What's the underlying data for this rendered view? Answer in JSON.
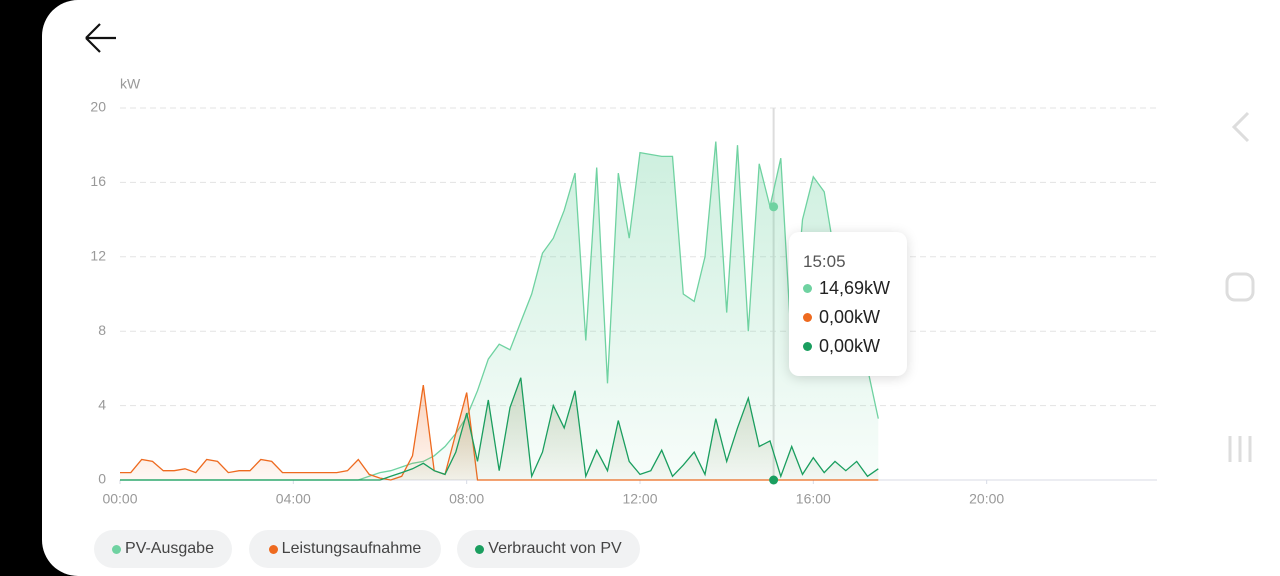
{
  "chart_data": {
    "type": "line",
    "y_label": "kW",
    "x": [
      0,
      0.25,
      0.5,
      0.75,
      1,
      1.25,
      1.5,
      1.75,
      2,
      2.25,
      2.5,
      2.75,
      3,
      3.25,
      3.5,
      3.75,
      4,
      4.25,
      4.5,
      4.75,
      5,
      5.25,
      5.5,
      5.75,
      6,
      6.25,
      6.5,
      6.75,
      7,
      7.25,
      7.5,
      7.75,
      8,
      8.25,
      8.5,
      8.75,
      9,
      9.25,
      9.5,
      9.75,
      10,
      10.25,
      10.5,
      10.75,
      11,
      11.25,
      11.5,
      11.75,
      12,
      12.25,
      12.5,
      12.75,
      13,
      13.25,
      13.5,
      13.75,
      14,
      14.25,
      14.5,
      14.75,
      15,
      15.25,
      15.5,
      15.75,
      16,
      16.25,
      16.5,
      16.75,
      17,
      17.25,
      17.5
    ],
    "series": [
      {
        "name": "PV-Ausgabe",
        "color": "#6fd2a1",
        "fill": true,
        "values": [
          0,
          0,
          0,
          0,
          0,
          0,
          0,
          0,
          0,
          0,
          0,
          0,
          0,
          0,
          0,
          0,
          0,
          0,
          0,
          0,
          0,
          0,
          0,
          0.2,
          0.4,
          0.5,
          0.7,
          0.9,
          1.0,
          1.3,
          1.8,
          2.5,
          3.4,
          4.8,
          6.5,
          7.3,
          7.0,
          8.5,
          10,
          12.2,
          13,
          14.5,
          16.5,
          7.5,
          16.8,
          5.2,
          16.5,
          13,
          17.6,
          17.5,
          17.4,
          17.4,
          10,
          9.6,
          12,
          18.2,
          9,
          18,
          8,
          17,
          14.7,
          17.3,
          7,
          14,
          16.3,
          15.5,
          12,
          10.5,
          6.5,
          6,
          3.3
        ]
      },
      {
        "name": "Leistungsaufnahme",
        "color": "#ee6a1f",
        "fill": true,
        "values": [
          0.4,
          0.4,
          1.1,
          1.0,
          0.5,
          0.5,
          0.6,
          0.4,
          1.1,
          1.0,
          0.4,
          0.5,
          0.5,
          1.1,
          1.0,
          0.4,
          0.4,
          0.4,
          0.4,
          0.4,
          0.4,
          0.5,
          1.1,
          0.3,
          0.1,
          0,
          0.2,
          1.3,
          5.1,
          0.5,
          0.3,
          2.5,
          4.7,
          0,
          0,
          0,
          0,
          0,
          0,
          0,
          0,
          0,
          0,
          0,
          0,
          0,
          0,
          0,
          0,
          0,
          0,
          0,
          0,
          0,
          0,
          0,
          0,
          0,
          0,
          0,
          0,
          0,
          0,
          0,
          0,
          0,
          0,
          0,
          0,
          0,
          0
        ]
      },
      {
        "name": "Verbraucht von PV",
        "color": "#1a9e5f",
        "fill": true,
        "values": [
          0,
          0,
          0,
          0,
          0,
          0,
          0,
          0,
          0,
          0,
          0,
          0,
          0,
          0,
          0,
          0,
          0,
          0,
          0,
          0,
          0,
          0,
          0,
          0,
          0,
          0.2,
          0.4,
          0.6,
          0.9,
          0.5,
          0.3,
          1.5,
          3.6,
          1.0,
          4.3,
          0.5,
          3.9,
          5.5,
          0.2,
          1.5,
          4.0,
          2.8,
          4.8,
          0.2,
          1.6,
          0.5,
          3.2,
          1.0,
          0.3,
          0.5,
          1.6,
          0.2,
          0.8,
          1.5,
          0.3,
          3.3,
          1.0,
          2.8,
          4.4,
          1.8,
          2.1,
          0.2,
          1.8,
          0.3,
          1.2,
          0.4,
          1.0,
          0.5,
          1.0,
          0.2,
          0.6
        ]
      }
    ],
    "xlim": [
      0,
      24
    ],
    "xticks": [
      {
        "value": 0,
        "label": "00:00"
      },
      {
        "value": 4,
        "label": "04:00"
      },
      {
        "value": 8,
        "label": "08:00"
      },
      {
        "value": 12,
        "label": "12:00"
      },
      {
        "value": 16,
        "label": "16:00"
      },
      {
        "value": 20,
        "label": "20:00"
      }
    ],
    "ylim": [
      0,
      20
    ],
    "yticks": [
      0,
      4,
      8,
      12,
      16,
      20
    ],
    "grid": true,
    "tooltip": {
      "title": "15:05",
      "items": [
        {
          "value": 14.69,
          "label": "14,69kW"
        },
        {
          "value": 0,
          "label": "0,00kW"
        },
        {
          "value": 0,
          "label": "0,00kW"
        }
      ]
    }
  }
}
